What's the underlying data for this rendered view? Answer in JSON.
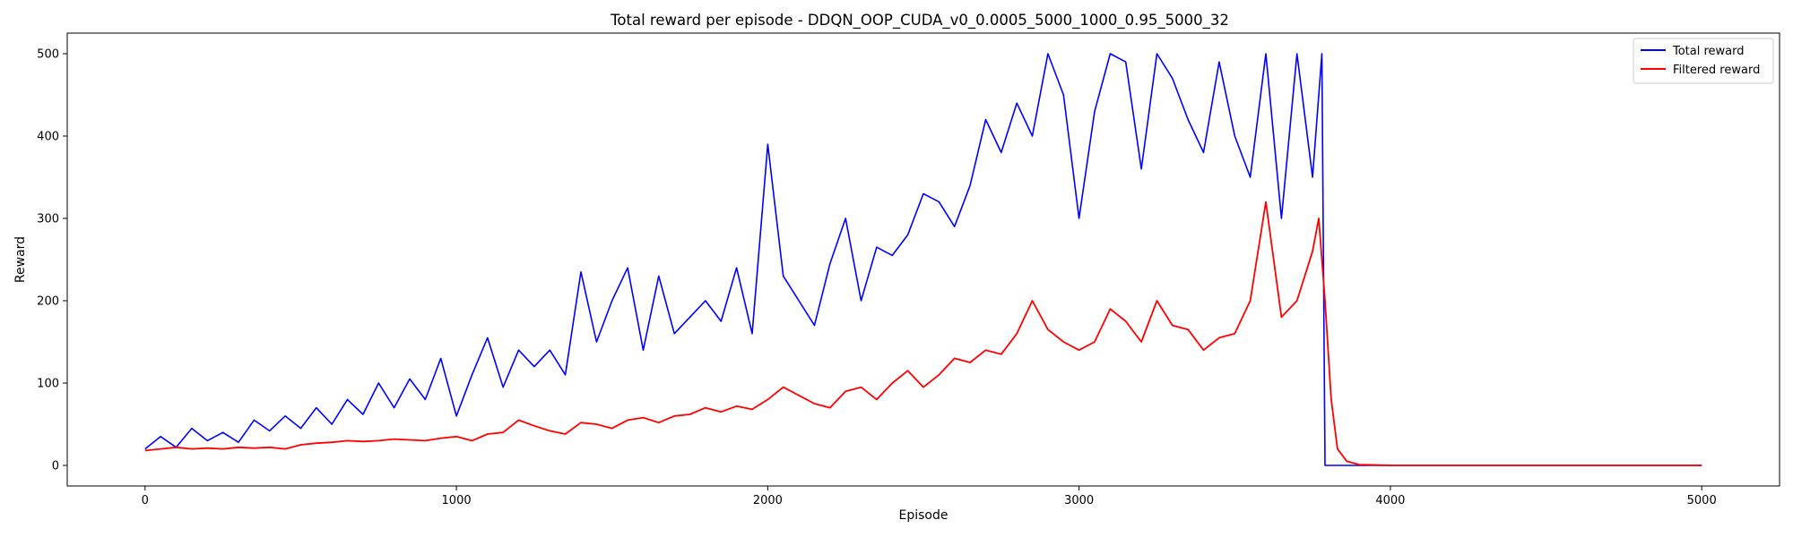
{
  "chart_data": {
    "type": "line",
    "title": "Total reward per episode - DDQN_OOP_CUDA_v0_0.0005_5000_1000_0.95_5000_32",
    "xlabel": "Episode",
    "ylabel": "Reward",
    "xlim": [
      -250,
      5250
    ],
    "ylim": [
      -25,
      525
    ],
    "xticks": [
      0,
      1000,
      2000,
      3000,
      4000,
      5000
    ],
    "yticks": [
      0,
      100,
      200,
      300,
      400,
      500
    ],
    "legend_position": "upper right",
    "grid": false,
    "series": [
      {
        "name": "Total reward",
        "color": "#0000ff",
        "x": [
          0,
          50,
          100,
          150,
          200,
          250,
          300,
          350,
          400,
          450,
          500,
          550,
          600,
          650,
          700,
          750,
          800,
          850,
          900,
          950,
          1000,
          1050,
          1100,
          1150,
          1200,
          1250,
          1300,
          1350,
          1400,
          1450,
          1500,
          1550,
          1600,
          1650,
          1700,
          1750,
          1800,
          1850,
          1900,
          1950,
          2000,
          2050,
          2100,
          2150,
          2200,
          2250,
          2300,
          2350,
          2400,
          2450,
          2500,
          2550,
          2600,
          2650,
          2700,
          2750,
          2800,
          2850,
          2900,
          2950,
          3000,
          3050,
          3100,
          3150,
          3200,
          3250,
          3300,
          3350,
          3400,
          3450,
          3500,
          3550,
          3600,
          3650,
          3700,
          3750,
          3780,
          3790,
          3800,
          3900,
          4000,
          4500,
          5000
        ],
        "values": [
          20,
          35,
          22,
          45,
          30,
          40,
          28,
          55,
          42,
          60,
          45,
          70,
          50,
          80,
          62,
          100,
          70,
          105,
          80,
          130,
          60,
          110,
          155,
          95,
          140,
          120,
          140,
          110,
          235,
          150,
          200,
          240,
          140,
          230,
          160,
          180,
          200,
          175,
          240,
          160,
          390,
          230,
          200,
          170,
          245,
          300,
          200,
          265,
          255,
          280,
          330,
          320,
          290,
          340,
          420,
          380,
          440,
          400,
          500,
          450,
          300,
          430,
          500,
          490,
          360,
          500,
          470,
          420,
          380,
          490,
          400,
          350,
          500,
          300,
          500,
          350,
          500,
          0,
          0,
          0,
          0,
          0,
          0
        ]
      },
      {
        "name": "Filtered reward",
        "color": "#ff0000",
        "x": [
          0,
          50,
          100,
          150,
          200,
          250,
          300,
          350,
          400,
          450,
          500,
          550,
          600,
          650,
          700,
          750,
          800,
          850,
          900,
          950,
          1000,
          1050,
          1100,
          1150,
          1200,
          1250,
          1300,
          1350,
          1400,
          1450,
          1500,
          1550,
          1600,
          1650,
          1700,
          1750,
          1800,
          1850,
          1900,
          1950,
          2000,
          2050,
          2100,
          2150,
          2200,
          2250,
          2300,
          2350,
          2400,
          2450,
          2500,
          2550,
          2600,
          2650,
          2700,
          2750,
          2800,
          2850,
          2900,
          2950,
          3000,
          3050,
          3100,
          3150,
          3200,
          3250,
          3300,
          3350,
          3400,
          3450,
          3500,
          3550,
          3600,
          3650,
          3700,
          3750,
          3770,
          3790,
          3810,
          3830,
          3860,
          3900,
          4000,
          4500,
          5000
        ],
        "values": [
          18,
          20,
          22,
          20,
          21,
          20,
          22,
          21,
          22,
          20,
          25,
          27,
          28,
          30,
          29,
          30,
          32,
          31,
          30,
          33,
          35,
          30,
          38,
          40,
          55,
          48,
          42,
          38,
          52,
          50,
          45,
          55,
          58,
          52,
          60,
          62,
          70,
          65,
          72,
          68,
          80,
          95,
          85,
          75,
          70,
          90,
          95,
          80,
          100,
          115,
          95,
          110,
          130,
          125,
          140,
          135,
          160,
          200,
          165,
          150,
          140,
          150,
          190,
          175,
          150,
          200,
          170,
          165,
          140,
          155,
          160,
          200,
          320,
          180,
          200,
          260,
          300,
          200,
          80,
          20,
          5,
          1,
          0,
          0,
          0
        ]
      }
    ]
  }
}
